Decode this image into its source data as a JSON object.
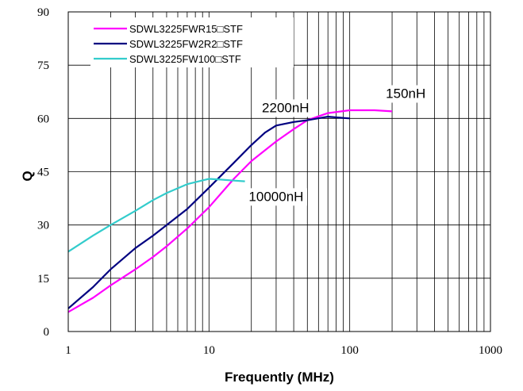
{
  "chart_data": {
    "type": "line",
    "title": "",
    "xlabel": "Frequently (MHz)",
    "ylabel": "Q",
    "x_scale": "log",
    "xlim": [
      1,
      1000
    ],
    "ylim": [
      0,
      90
    ],
    "x_ticks": [
      "1",
      "10",
      "100",
      "1000"
    ],
    "y_ticks": [
      "0",
      "15",
      "30",
      "45",
      "60",
      "75",
      "90"
    ],
    "grid": true,
    "legend_position": "top-left",
    "series": [
      {
        "name": "SDWL3225FWR15□STF",
        "color": "#ff00ff",
        "x": [
          1,
          1.5,
          2,
          3,
          4,
          5,
          7,
          10,
          15,
          20,
          30,
          40,
          50,
          70,
          100,
          150,
          200
        ],
        "y": [
          5.5,
          9.5,
          13,
          17.5,
          21,
          24,
          29,
          35,
          43,
          48,
          53.5,
          57,
          59.5,
          61.5,
          62.3,
          62.3,
          62
        ]
      },
      {
        "name": "SDWL3225FW2R2□STF",
        "color": "#000080",
        "x": [
          1,
          1.5,
          2,
          3,
          4,
          5,
          7,
          10,
          15,
          20,
          25,
          30,
          40,
          50,
          70,
          100
        ],
        "y": [
          6.5,
          12.5,
          17.5,
          23.5,
          27,
          30,
          34.5,
          40.5,
          47.5,
          52.5,
          56,
          58,
          59,
          59.5,
          60.5,
          60
        ]
      },
      {
        "name": "SDWL3225FW100□STF",
        "color": "#33cccc",
        "x": [
          1,
          1.5,
          2,
          3,
          4,
          5,
          7,
          10,
          12,
          15,
          18
        ],
        "y": [
          22.5,
          27,
          30,
          34,
          37,
          39,
          41.5,
          43,
          42.8,
          42.5,
          42.3
        ]
      }
    ],
    "annotations": [
      {
        "text": "150nH",
        "x": 250,
        "y": 66
      },
      {
        "text": "2200nH",
        "x": 35,
        "y": 62
      },
      {
        "text": "10000nH",
        "x": 30,
        "y": 37
      }
    ]
  }
}
